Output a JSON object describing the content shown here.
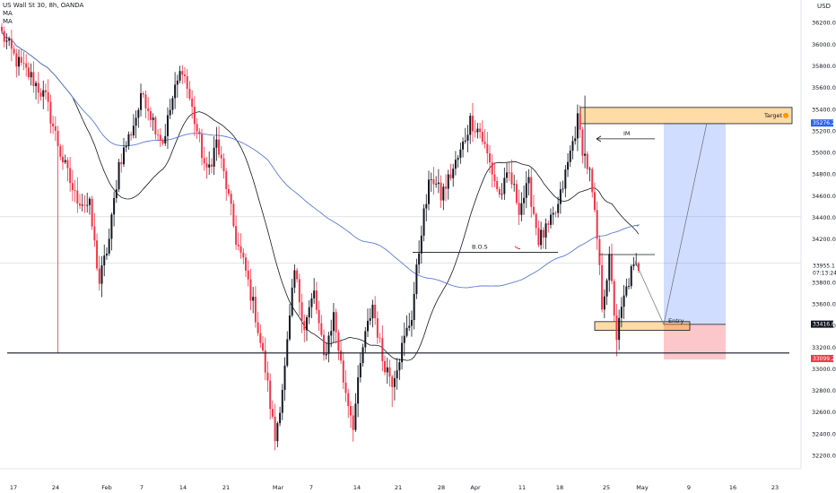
{
  "legend": {
    "symbol": "US Wall St 30, 8h, OANDA",
    "ma1": "MA",
    "ma2": "MA"
  },
  "currency_label": "USD",
  "chart_data": {
    "type": "candlestick",
    "symbol": "US Wall St 30",
    "interval": "8h",
    "source": "OANDA",
    "ylim": [
      32200,
      36500
    ],
    "y_ticks": [
      32200,
      32400,
      32600,
      32800,
      33000,
      33200,
      33400,
      33600,
      33800,
      34000,
      34200,
      34400,
      34600,
      34800,
      35000,
      35200,
      35400,
      35600,
      35800,
      36000,
      36200
    ],
    "x_tick_labels": [
      "17",
      "24",
      "Feb",
      "7",
      "14",
      "21",
      "Mar",
      "7",
      "14",
      "21",
      "28",
      "Apr",
      "11",
      "18",
      "25",
      "May",
      "9",
      "16",
      "23"
    ],
    "price_labels": {
      "target": "35276.2",
      "current": "33955.1",
      "countdown": "07:13:24",
      "entry": "33416.8",
      "stop": "33099.2"
    },
    "annotations": {
      "target": "Target",
      "bos": "B.O.S",
      "im": "IM",
      "entry": "Entry"
    },
    "levels": {
      "support": 33150,
      "bos": 34080,
      "entry": 33415,
      "target_zone": [
        35270,
        35420
      ],
      "stop": 33100,
      "local_high": 34060,
      "grid_upper": 34410,
      "grid_lower": 33980
    },
    "candles_start_date": "2022-01-17",
    "candle_interval_hours": 8,
    "path_points": [
      [
        0,
        36100
      ],
      [
        6,
        35850
      ],
      [
        12,
        35700
      ],
      [
        18,
        35500
      ],
      [
        24,
        35000
      ],
      [
        30,
        34600
      ],
      [
        36,
        34500
      ],
      [
        40,
        33800
      ],
      [
        44,
        34200
      ],
      [
        48,
        34900
      ],
      [
        53,
        35200
      ],
      [
        58,
        35550
      ],
      [
        62,
        35300
      ],
      [
        66,
        35100
      ],
      [
        70,
        35500
      ],
      [
        74,
        35800
      ],
      [
        80,
        35200
      ],
      [
        84,
        34800
      ],
      [
        88,
        35100
      ],
      [
        92,
        34700
      ],
      [
        96,
        34200
      ],
      [
        100,
        33900
      ],
      [
        104,
        33500
      ],
      [
        108,
        33000
      ],
      [
        112,
        32350
      ],
      [
        116,
        33000
      ],
      [
        120,
        33900
      ],
      [
        124,
        33400
      ],
      [
        128,
        33700
      ],
      [
        132,
        33100
      ],
      [
        136,
        33500
      ],
      [
        140,
        32900
      ],
      [
        144,
        32500
      ],
      [
        148,
        33200
      ],
      [
        152,
        33600
      ],
      [
        156,
        33100
      ],
      [
        160,
        32900
      ],
      [
        164,
        33200
      ],
      [
        168,
        33500
      ],
      [
        172,
        34300
      ],
      [
        176,
        34800
      ],
      [
        180,
        34600
      ],
      [
        184,
        34800
      ],
      [
        188,
        35000
      ],
      [
        192,
        35300
      ],
      [
        196,
        35200
      ],
      [
        200,
        34900
      ],
      [
        204,
        34600
      ],
      [
        208,
        34800
      ],
      [
        212,
        34500
      ],
      [
        216,
        34700
      ],
      [
        220,
        34200
      ],
      [
        224,
        34300
      ],
      [
        228,
        34500
      ],
      [
        232,
        34900
      ],
      [
        236,
        35300
      ],
      [
        238,
        35050
      ],
      [
        241,
        34800
      ],
      [
        244,
        34200
      ],
      [
        246,
        33600
      ],
      [
        249,
        34000
      ],
      [
        252,
        33300
      ],
      [
        255,
        33650
      ],
      [
        258,
        33900
      ],
      [
        261,
        33955
      ]
    ]
  }
}
